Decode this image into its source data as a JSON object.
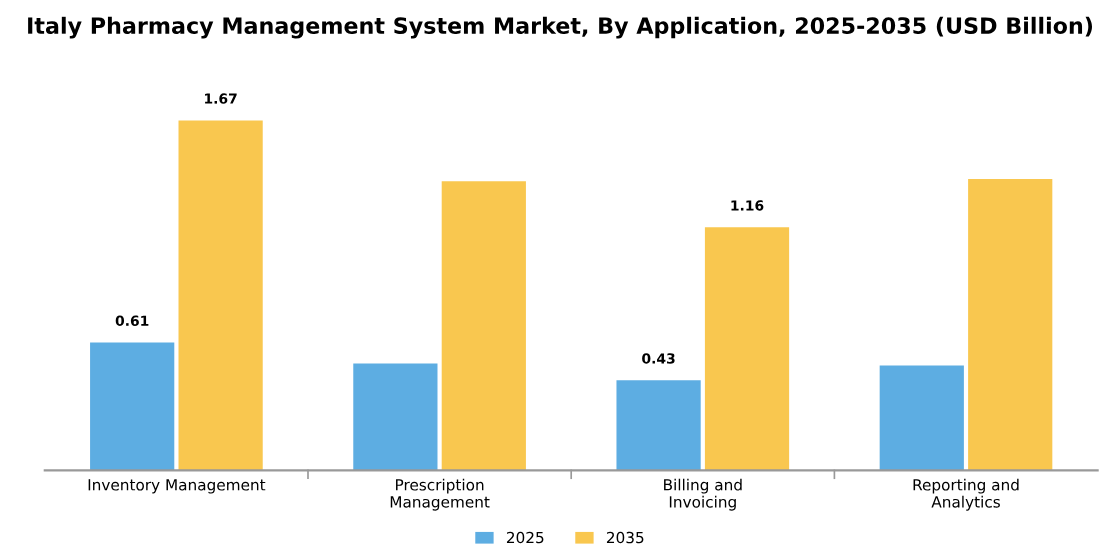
{
  "chart_data": {
    "type": "bar",
    "title": "Italy Pharmacy Management System Market, By Application, 2025-2035 (USD Billion)",
    "categories": [
      "Inventory Management",
      "Prescription\nManagement",
      "Billing and\nInvoicing",
      "Reporting and\nAnalytics"
    ],
    "series": [
      {
        "name": "2025",
        "color": "#5dade2",
        "values": [
          0.61,
          0.51,
          0.43,
          0.5
        ],
        "value_labels": [
          "0.61",
          null,
          "0.43",
          null
        ]
      },
      {
        "name": "2035",
        "color": "#f9c74f",
        "values": [
          1.67,
          1.38,
          1.16,
          1.39
        ],
        "value_labels": [
          "1.67",
          null,
          "1.16",
          null
        ]
      }
    ],
    "legend": "bottom",
    "grid": false
  }
}
